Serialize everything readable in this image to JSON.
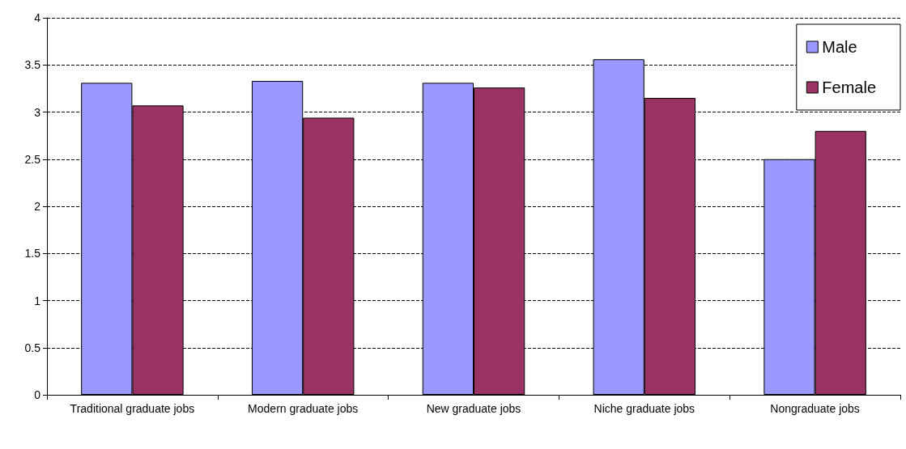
{
  "chart_data": {
    "type": "bar",
    "categories": [
      "Traditional graduate jobs",
      "Modern graduate jobs",
      "New graduate jobs",
      "Niche graduate jobs",
      "Nongraduate jobs"
    ],
    "series": [
      {
        "name": "Male",
        "color": "#9999ff",
        "values": [
          3.31,
          3.33,
          3.31,
          3.56,
          2.5
        ]
      },
      {
        "name": "Female",
        "color": "#993366",
        "values": [
          3.07,
          2.94,
          3.26,
          3.15,
          2.8
        ]
      }
    ],
    "ylim": [
      0,
      4
    ],
    "yticks": [
      0,
      0.5,
      1,
      1.5,
      2,
      2.5,
      3,
      3.5,
      4
    ],
    "grid": "y",
    "legend": "top right"
  }
}
